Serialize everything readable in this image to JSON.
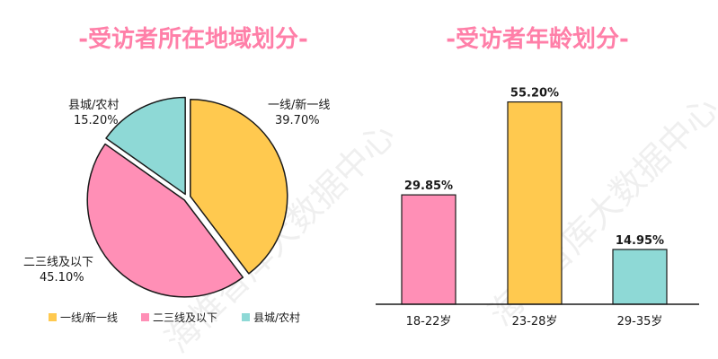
{
  "watermark": "海惟智库大数据中心",
  "chart_data": [
    {
      "type": "pie",
      "title": "-受访者所在地域划分-",
      "labels": [
        "一线/新一线",
        "二三线及以下",
        "县城/农村"
      ],
      "values": [
        39.7,
        45.1,
        15.2
      ],
      "value_labels": [
        "39.70%",
        "45.10%",
        "15.20%"
      ],
      "colors": [
        "#ffc94f",
        "#ff8fb6",
        "#8ed9d6"
      ],
      "legend": [
        "一线/新一线",
        "二三线及以下",
        "县城/农村"
      ],
      "legend_position": "bottom"
    },
    {
      "type": "bar",
      "title": "-受访者年龄划分-",
      "categories": [
        "18-22岁",
        "23-28岁",
        "29-35岁"
      ],
      "values": [
        29.85,
        55.2,
        14.95
      ],
      "value_labels": [
        "29.85%",
        "55.20%",
        "14.95%"
      ],
      "colors": [
        "#ff8fb6",
        "#ffc94f",
        "#8ed9d6"
      ],
      "ylim": [
        0,
        60
      ],
      "grid": false
    }
  ]
}
